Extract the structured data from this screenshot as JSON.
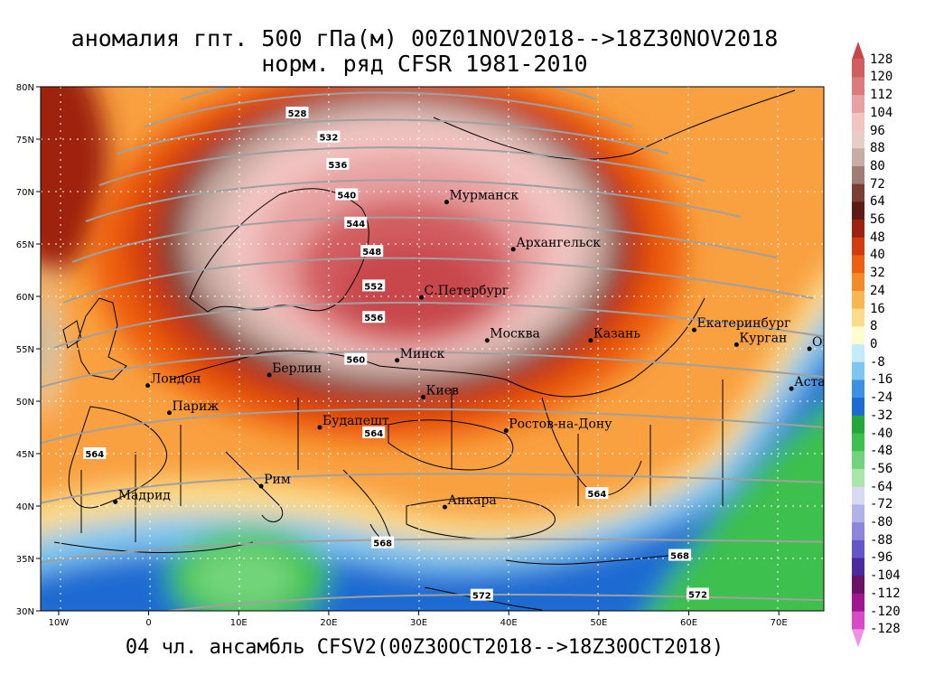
{
  "title": {
    "line1": "аномалия гпт. 500 гПа(м) 00Z01NOV2018-->18Z30NOV2018",
    "line2": "норм. ряд CFSR 1981-2010"
  },
  "footer": "04 чл. ансамбль CFSV2(00Z30OCT2018-->18Z30OCT2018)",
  "map": {
    "lon_range": [
      -12,
      75
    ],
    "lat_range": [
      30,
      80
    ],
    "lat_ticks": [
      {
        "value": 30,
        "label": "30N"
      },
      {
        "value": 35,
        "label": "35N"
      },
      {
        "value": 40,
        "label": "40N"
      },
      {
        "value": 45,
        "label": "45N"
      },
      {
        "value": 50,
        "label": "50N"
      },
      {
        "value": 55,
        "label": "55N"
      },
      {
        "value": 60,
        "label": "60N"
      },
      {
        "value": 65,
        "label": "65N"
      },
      {
        "value": 70,
        "label": "70N"
      },
      {
        "value": 75,
        "label": "75N"
      },
      {
        "value": 80,
        "label": "80N"
      }
    ],
    "lon_ticks": [
      {
        "value": -10,
        "label": "10W"
      },
      {
        "value": 0,
        "label": "0"
      },
      {
        "value": 10,
        "label": "10E"
      },
      {
        "value": 20,
        "label": "20E"
      },
      {
        "value": 30,
        "label": "30E"
      },
      {
        "value": 40,
        "label": "40E"
      },
      {
        "value": 50,
        "label": "50E"
      },
      {
        "value": 60,
        "label": "60E"
      },
      {
        "value": 70,
        "label": "70E"
      }
    ],
    "cities": [
      {
        "name": "Мурманск",
        "lon": 33.1,
        "lat": 69.0
      },
      {
        "name": "Архангельск",
        "lon": 40.5,
        "lat": 64.5
      },
      {
        "name": "С.Петербург",
        "lon": 30.3,
        "lat": 59.9
      },
      {
        "name": "Москва",
        "lon": 37.6,
        "lat": 55.8
      },
      {
        "name": "Казань",
        "lon": 49.1,
        "lat": 55.8
      },
      {
        "name": "Екатеринбург",
        "lon": 60.6,
        "lat": 56.8
      },
      {
        "name": "Курган",
        "lon": 65.3,
        "lat": 55.4
      },
      {
        "name": "Омск",
        "lon": 73.4,
        "lat": 55.0
      },
      {
        "name": "Астана",
        "lon": 71.4,
        "lat": 51.2
      },
      {
        "name": "Минск",
        "lon": 27.6,
        "lat": 53.9
      },
      {
        "name": "Берлин",
        "lon": 13.4,
        "lat": 52.5
      },
      {
        "name": "Лондон",
        "lon": -0.1,
        "lat": 51.5
      },
      {
        "name": "Париж",
        "lon": 2.3,
        "lat": 48.9
      },
      {
        "name": "Киев",
        "lon": 30.5,
        "lat": 50.4
      },
      {
        "name": "Ростов-на-Дону",
        "lon": 39.7,
        "lat": 47.2
      },
      {
        "name": "Будапешт",
        "lon": 19.0,
        "lat": 47.5
      },
      {
        "name": "Рим",
        "lon": 12.5,
        "lat": 41.9
      },
      {
        "name": "Мадрид",
        "lon": -3.7,
        "lat": 40.4
      },
      {
        "name": "Анкара",
        "lon": 32.9,
        "lat": 39.9
      }
    ],
    "contour_labels": [
      {
        "text": "528",
        "lon": 16.5,
        "lat": 77.5
      },
      {
        "text": "532",
        "lon": 20.0,
        "lat": 75.2
      },
      {
        "text": "536",
        "lon": 21.0,
        "lat": 72.6
      },
      {
        "text": "540",
        "lon": 22.0,
        "lat": 69.7
      },
      {
        "text": "544",
        "lon": 23.0,
        "lat": 67.0
      },
      {
        "text": "548",
        "lon": 24.8,
        "lat": 64.3
      },
      {
        "text": "552",
        "lon": 25.0,
        "lat": 61.0
      },
      {
        "text": "556",
        "lon": 25.0,
        "lat": 58.0
      },
      {
        "text": "560",
        "lon": 23.0,
        "lat": 54.0
      },
      {
        "text": "564",
        "lon": 25.0,
        "lat": 47.0
      },
      {
        "text": "564",
        "lon": -6.0,
        "lat": 45.0
      },
      {
        "text": "564",
        "lon": 49.8,
        "lat": 41.2
      },
      {
        "text": "568",
        "lon": 26.0,
        "lat": 36.5
      },
      {
        "text": "568",
        "lon": 59.0,
        "lat": 35.3
      },
      {
        "text": "572",
        "lon": 37.0,
        "lat": 31.5
      },
      {
        "text": "572",
        "lon": 61.0,
        "lat": 31.6
      }
    ]
  },
  "colorbar": {
    "levels": [
      "128",
      "120",
      "112",
      "104",
      "96",
      "88",
      "80",
      "72",
      "64",
      "56",
      "48",
      "40",
      "32",
      "24",
      "16",
      "8",
      "0",
      "-8",
      "-16",
      "-24",
      "-32",
      "-40",
      "-48",
      "-56",
      "-64",
      "-72",
      "-80",
      "-88",
      "-96",
      "-104",
      "-112",
      "-120",
      "-128"
    ],
    "colors": [
      "#c8474b",
      "#d25d60",
      "#dc7a7c",
      "#e8a0a0",
      "#f2c4c2",
      "#e6cdc6",
      "#c9ada5",
      "#9f7d72",
      "#7a3f32",
      "#5c1c12",
      "#9e2010",
      "#d33a10",
      "#ee6010",
      "#f58a28",
      "#f9b550",
      "#fcdc8a",
      "#fffcd0",
      "#c2ecf8",
      "#7ec6ef",
      "#3c92e0",
      "#1f6ad2",
      "#22a838",
      "#3ec04e",
      "#72d47a",
      "#aae6a8",
      "#d8daf4",
      "#b2b2ea",
      "#8c86dc",
      "#6456c8",
      "#4a2a9c",
      "#6a1268",
      "#a0168e",
      "#d848c8",
      "#f090e4"
    ]
  }
}
